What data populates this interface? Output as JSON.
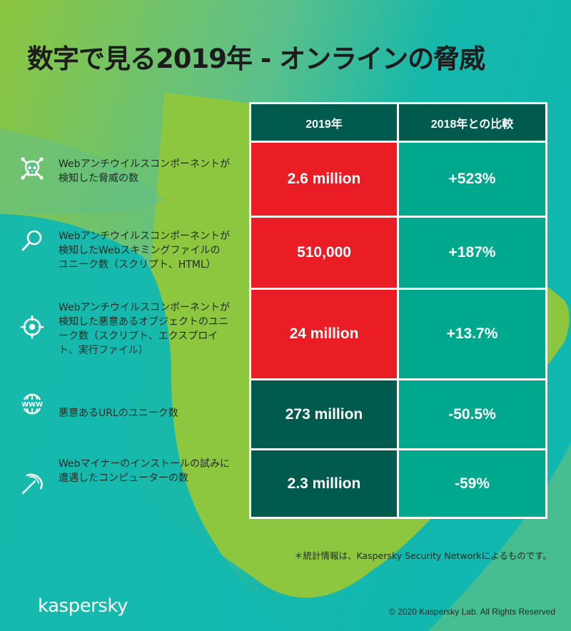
{
  "title": "数字で見る2019年 - オンラインの脅威",
  "colors": {
    "header": "#005b4e",
    "red": "#ea1c24",
    "teal": "#00a88e",
    "dark": "#005b4e",
    "lime": "#8dc63f",
    "cyan": "#12b8b0"
  },
  "table": {
    "headers": [
      "2019年",
      "2018年との比較"
    ],
    "rows": [
      {
        "icon": "skull-crossbones-icon",
        "label": "Webアンチウイルスコンポーネントが検知した脅威の数",
        "value": "2.6 million",
        "change": "+523%"
      },
      {
        "icon": "magnifier-icon",
        "label": "Webアンチウイルスコンポーネントが検知したWebスキミングファイルのユニーク数（スクリプト、HTML）",
        "value": "510,000",
        "change": "+187%"
      },
      {
        "icon": "target-crosshair-icon",
        "label": "Webアンチウイルスコンポーネントが検知した悪意あるオブジェクトのユニーク数（スクリプト、エクスプロイト、実行ファイル）",
        "value": "24 million",
        "change": "+13.7%"
      },
      {
        "icon": "www-globe-icon",
        "label": "悪意あるURLのユニーク数",
        "value": "273 million",
        "change": "-50.5%"
      },
      {
        "icon": "pickaxe-icon",
        "label": "Webマイナーのインストールの試みに遭遇したコンピューターの数",
        "value": "2.3 million",
        "change": "-59%"
      }
    ]
  },
  "footnote": "＊統計情報は、Kaspersky Security Networkによるものです。",
  "logo": "kaspersky",
  "copyright": "© 2020  Kaspersky Lab. All Rights Reserved"
}
